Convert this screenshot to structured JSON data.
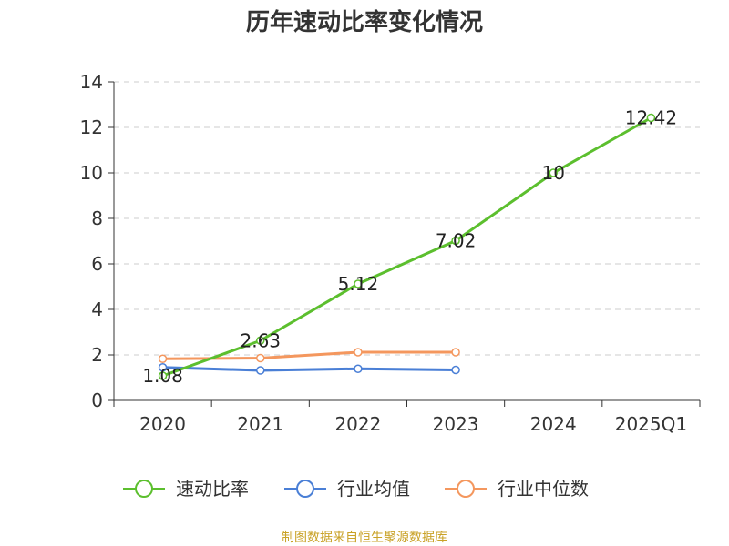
{
  "chart_data": {
    "type": "line",
    "title": "历年速动比率变化情况",
    "xlabel": "",
    "ylabel": "",
    "categories": [
      "2020",
      "2021",
      "2022",
      "2023",
      "2024",
      "2025Q1"
    ],
    "ylim": [
      0,
      14
    ],
    "yticks": [
      0,
      2,
      4,
      6,
      8,
      10,
      12,
      14
    ],
    "grid": true,
    "legend_position": "bottom",
    "series": [
      {
        "name": "速动比率",
        "color": "#5cbf2e",
        "values": [
          1.08,
          2.63,
          5.12,
          7.02,
          10,
          12.42
        ],
        "labels": [
          "1.08",
          "2.63",
          "5.12",
          "7.02",
          "10",
          "12.42"
        ]
      },
      {
        "name": "行业均值",
        "color": "#4a7fd6",
        "values": [
          1.45,
          1.32,
          1.39,
          1.34,
          null,
          null
        ]
      },
      {
        "name": "行业中位数",
        "color": "#f4975e",
        "values": [
          1.83,
          1.86,
          2.12,
          2.12,
          null,
          null
        ]
      }
    ]
  },
  "footer": {
    "source": "制图数据来自恒生聚源数据库"
  }
}
